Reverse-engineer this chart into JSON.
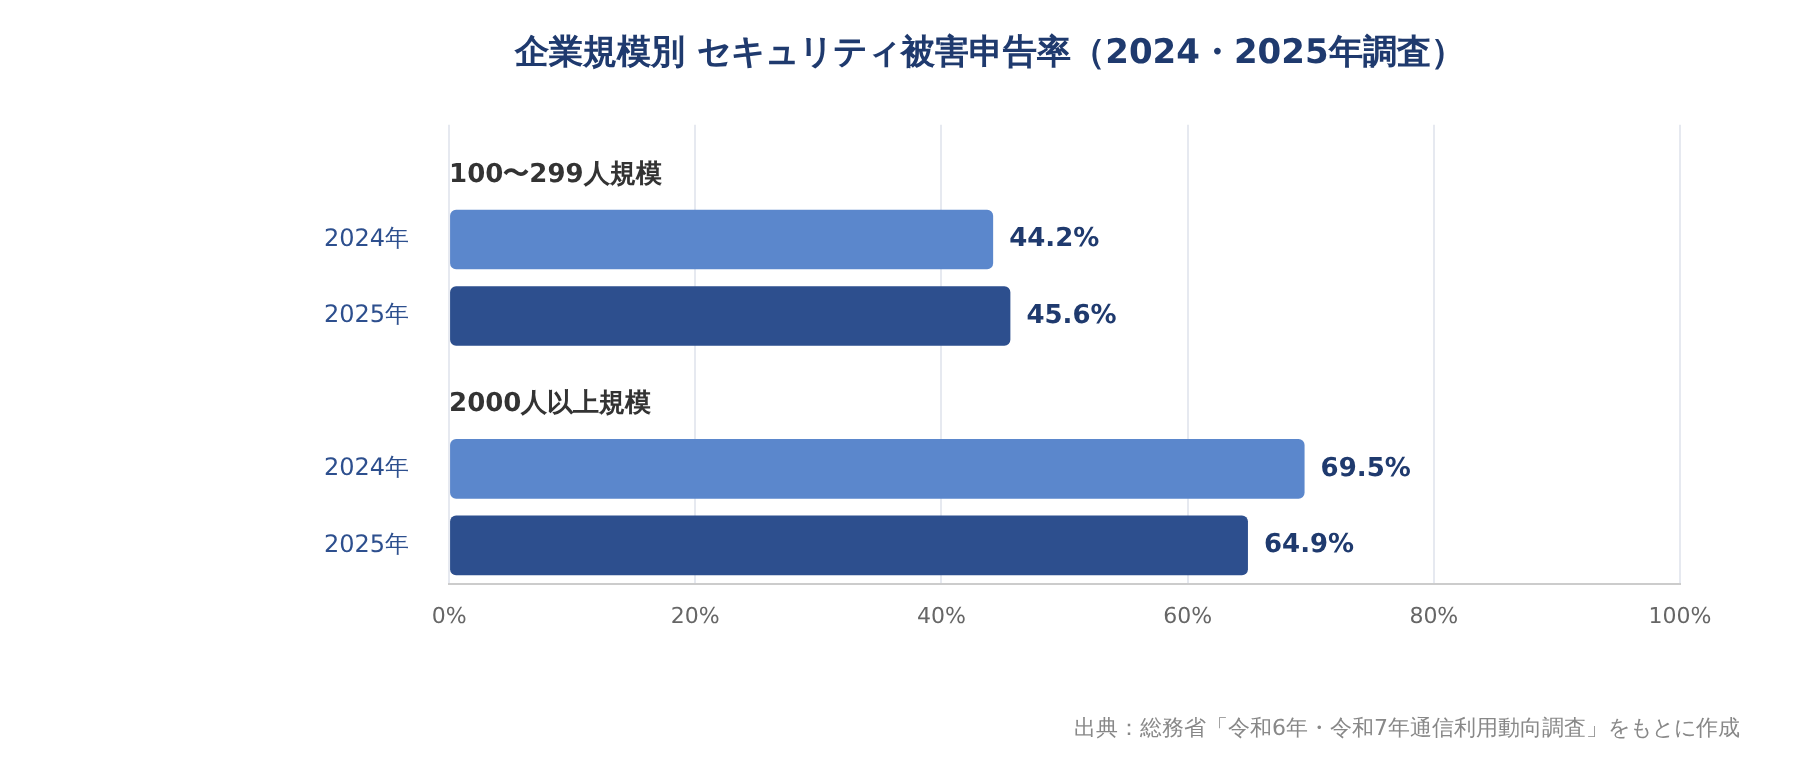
{
  "chart_data": {
    "type": "bar",
    "orientation": "horizontal",
    "title": "企業規模別 セキュリティ被害申告率（2024・2025年調査）",
    "categories": [
      null,
      "2024年",
      "2025年",
      null,
      "2024年",
      "2025年"
    ],
    "values": [
      null,
      44.2,
      45.6,
      null,
      69.5,
      64.9
    ],
    "colors": [
      "#5b87cc",
      "#5b87cc",
      "#2d4f8e",
      "#5b87cc",
      "#5b87cc",
      "#2d4f8e"
    ],
    "xlim": [
      0,
      100
    ],
    "xticks": [
      {
        "value": 0,
        "label": "0%"
      },
      {
        "value": 20,
        "label": "20%"
      },
      {
        "value": 40,
        "label": "40%"
      },
      {
        "value": 60,
        "label": "60%"
      },
      {
        "value": 80,
        "label": "80%"
      },
      {
        "value": 100,
        "label": "100%"
      }
    ],
    "value_labels": [
      null,
      "44.2%",
      "45.6%",
      null,
      "69.5%",
      "64.9%"
    ],
    "grid": "x",
    "legend": false,
    "annotations": [
      "100〜299人規模",
      "2000人以上規模",
      "出典：総務省「令和6年・令和7年通信利用動向調査」をもとに作成"
    ]
  }
}
